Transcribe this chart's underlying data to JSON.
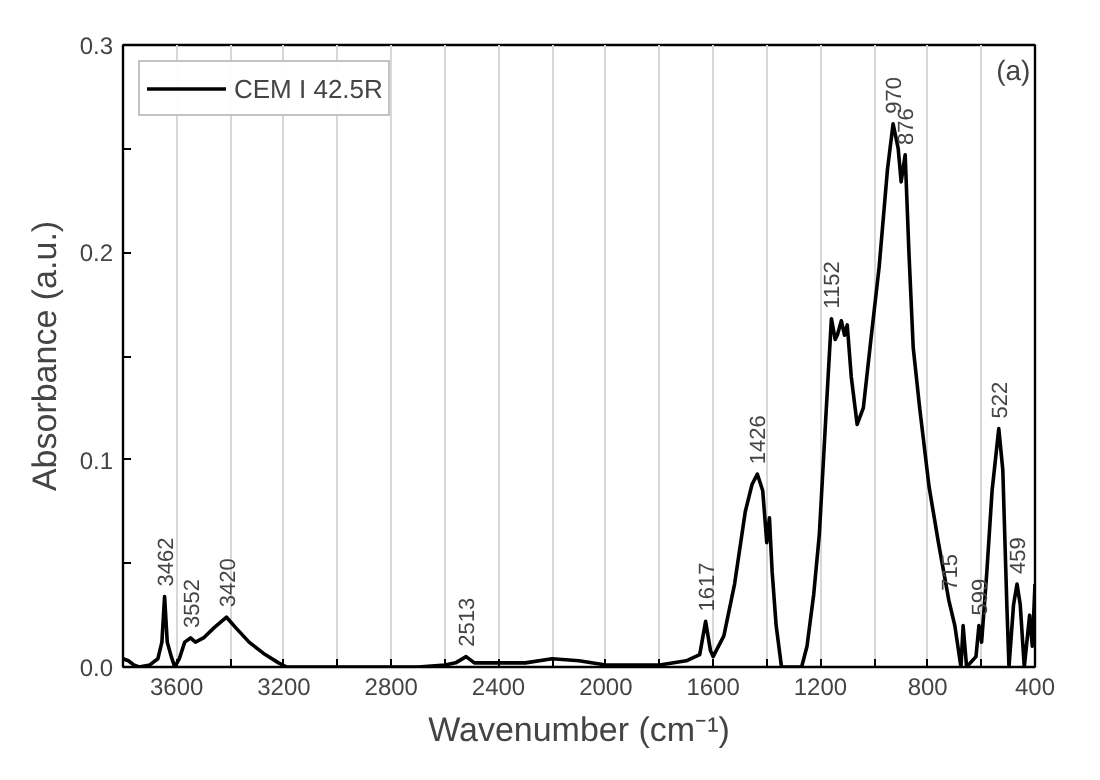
{
  "chart_data": {
    "type": "line",
    "xlabel": "Wavenumber (cm⁻¹)",
    "ylabel": "Absorbance (a.u.)",
    "xlim": [
      3800,
      400
    ],
    "ylim": [
      0,
      0.3
    ],
    "xticks": [
      {
        "value": 3800,
        "label": null
      },
      {
        "value": 3400,
        "label": null
      },
      3600,
      3200,
      2800,
      2400,
      2000,
      1600,
      1200,
      800,
      400,
      {
        "value": 3000,
        "label": null
      },
      {
        "value": 2600,
        "label": null
      },
      {
        "value": 2200,
        "label": null
      },
      {
        "value": 1800,
        "label": null
      },
      {
        "value": 1400,
        "label": null
      },
      {
        "value": 1000,
        "label": null
      },
      {
        "value": 600,
        "label": null
      }
    ],
    "yticks": [
      {
        "value": 0,
        "label": "0.0"
      },
      {
        "value": 0.05,
        "label": null
      },
      0.1,
      {
        "value": 0.15,
        "label": null
      },
      0.2,
      {
        "value": 0.25,
        "label": null
      },
      0.3
    ],
    "grid": "x",
    "legend": "top left",
    "marker": "none",
    "line_style": "solid",
    "series": [
      {
        "name": "CEM I 42.5R",
        "color": "#000000",
        "x": [
          3800,
          3780,
          3760,
          3740,
          3700,
          3670,
          3655,
          3645,
          3635,
          3620,
          3607,
          3590,
          3570,
          3548,
          3530,
          3500,
          3460,
          3414,
          3380,
          3330,
          3270,
          3220,
          3190,
          3000,
          2700,
          2600,
          2560,
          2521,
          2490,
          2400,
          2300,
          2200,
          2100,
          2000,
          1800,
          1700,
          1650,
          1628,
          1610,
          1600,
          1560,
          1520,
          1480,
          1455,
          1435,
          1415,
          1400,
          1390,
          1380,
          1365,
          1345,
          1270,
          1250,
          1225,
          1204,
          1180,
          1159,
          1145,
          1137,
          1122,
          1110,
          1100,
          1085,
          1063,
          1040,
          1010,
          981,
          950,
          929,
          910,
          899,
          884,
          870,
          854,
          830,
          795,
          760,
          721,
          699,
          676,
          668,
          655,
          620,
          609,
          599,
          580,
          560,
          535,
          520,
          505,
          497,
          480,
          467,
          455,
          440,
          420,
          410,
          400
        ],
        "values": [
          0.004,
          0.003,
          0.001,
          0.0,
          0.001,
          0.004,
          0.012,
          0.034,
          0.012,
          0.005,
          0.0,
          0.004,
          0.012,
          0.014,
          0.012,
          0.014,
          0.019,
          0.024,
          0.019,
          0.012,
          0.006,
          0.002,
          0.0,
          0.0,
          0.0,
          0.001,
          0.002,
          0.005,
          0.002,
          0.002,
          0.002,
          0.004,
          0.003,
          0.001,
          0.001,
          0.003,
          0.006,
          0.022,
          0.008,
          0.005,
          0.015,
          0.04,
          0.075,
          0.088,
          0.093,
          0.085,
          0.06,
          0.072,
          0.046,
          0.02,
          0.0,
          0.0,
          0.01,
          0.035,
          0.064,
          0.12,
          0.168,
          0.158,
          0.16,
          0.167,
          0.16,
          0.165,
          0.14,
          0.117,
          0.125,
          0.16,
          0.193,
          0.24,
          0.262,
          0.25,
          0.234,
          0.247,
          0.2,
          0.154,
          0.125,
          0.087,
          0.06,
          0.032,
          0.02,
          0.0,
          0.02,
          0.0,
          0.005,
          0.02,
          0.012,
          0.045,
          0.085,
          0.115,
          0.095,
          0.03,
          0.0,
          0.03,
          0.04,
          0.03,
          0.0,
          0.025,
          0.01,
          0.04
        ]
      }
    ],
    "annotations": [
      {
        "text": "3462",
        "x": 3645,
        "y": 0.034
      },
      {
        "text": "3552",
        "x": 3548,
        "y": 0.014
      },
      {
        "text": "3420",
        "x": 3414,
        "y": 0.024
      },
      {
        "text": "2513",
        "x": 2521,
        "y": 0.005
      },
      {
        "text": "1617",
        "x": 1628,
        "y": 0.022
      },
      {
        "text": "1426",
        "x": 1435,
        "y": 0.093
      },
      {
        "text": "1152",
        "x": 1159,
        "y": 0.168
      },
      {
        "text": "970",
        "x": 929,
        "y": 0.262
      },
      {
        "text": "876",
        "x": 884,
        "y": 0.247
      },
      {
        "text": "715",
        "x": 721,
        "y": 0.032
      },
      {
        "text": "599",
        "x": 609,
        "y": 0.02
      },
      {
        "text": "522",
        "x": 535,
        "y": 0.115
      },
      {
        "text": "459",
        "x": 467,
        "y": 0.04
      },
      "(a)"
    ]
  }
}
